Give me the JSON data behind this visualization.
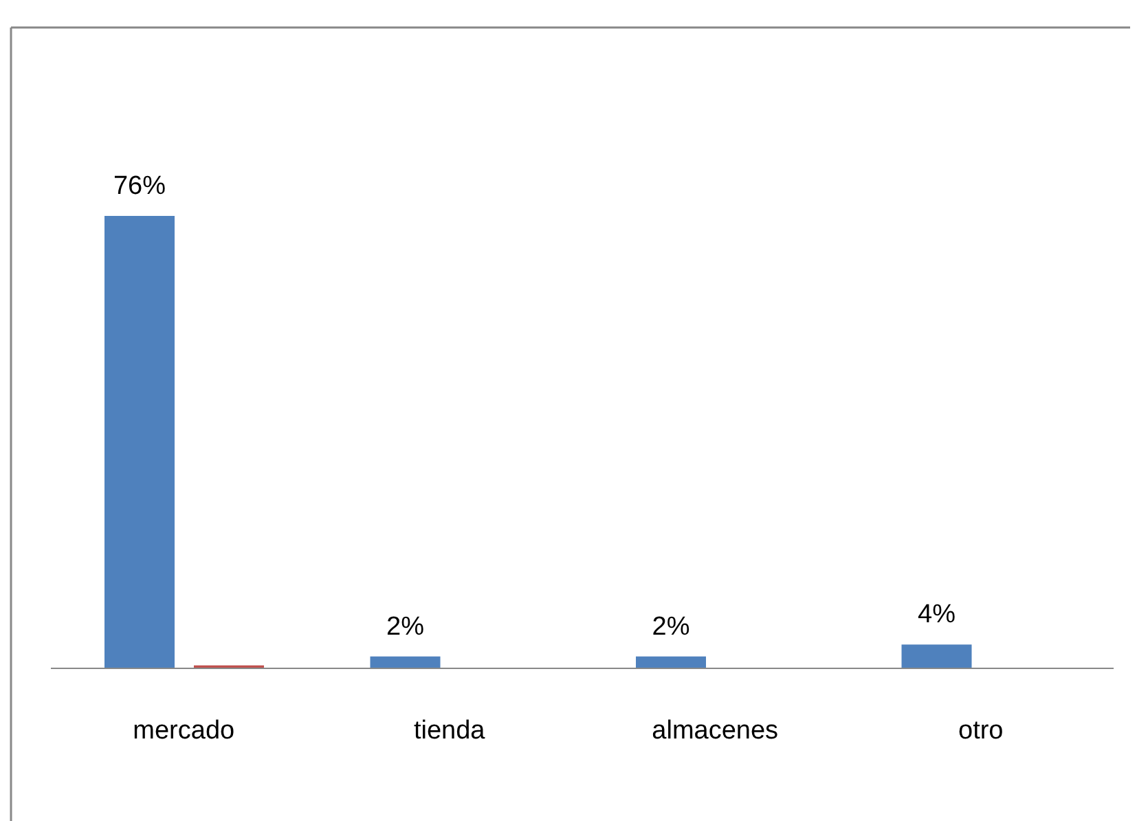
{
  "chart_data": {
    "type": "bar",
    "categories": [
      "mercado",
      "tienda",
      "almacenes",
      "otro"
    ],
    "series": [
      {
        "color": "#4f81bd",
        "values": [
          76,
          2,
          2,
          4
        ],
        "value_labels": [
          "76%",
          "2%",
          "2%",
          "4%"
        ]
      },
      {
        "color": "#c0504d",
        "values": [
          0.5,
          null,
          null,
          null
        ],
        "value_labels": [
          null,
          null,
          null,
          null
        ]
      }
    ]
  }
}
